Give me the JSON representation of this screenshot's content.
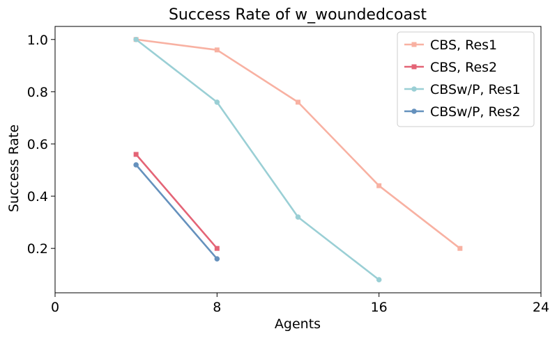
{
  "chart_data": {
    "type": "line",
    "title": "Success Rate of w_woundedcoast",
    "xlabel": "Agents",
    "ylabel": "Success Rate",
    "xlim": [
      0,
      24
    ],
    "ylim": [
      0.03,
      1.05
    ],
    "xticks": [
      0,
      8,
      16,
      24
    ],
    "xtick_labels": [
      "0",
      "8",
      "16",
      "24"
    ],
    "yticks": [
      0.2,
      0.4,
      0.6,
      0.8,
      1.0
    ],
    "ytick_labels": [
      "0.2",
      "0.4",
      "0.6",
      "0.8",
      "1.0"
    ],
    "grid": false,
    "legend_position": "top-right",
    "series": [
      {
        "name": "CBS, Res1",
        "color": "#f8b1a2",
        "marker": "square",
        "x": [
          4,
          8,
          12,
          16,
          20
        ],
        "y": [
          1.0,
          0.96,
          0.76,
          0.44,
          0.2
        ]
      },
      {
        "name": "CBS, Res2",
        "color": "#e46476",
        "marker": "square",
        "x": [
          4,
          8
        ],
        "y": [
          0.56,
          0.2
        ]
      },
      {
        "name": "CBSw/P, Res1",
        "color": "#9acfd5",
        "marker": "circle",
        "x": [
          4,
          8,
          12,
          16
        ],
        "y": [
          1.0,
          0.76,
          0.32,
          0.08
        ]
      },
      {
        "name": "CBSw/P, Res2",
        "color": "#6591bd",
        "marker": "circle",
        "x": [
          4,
          8
        ],
        "y": [
          0.52,
          0.16
        ]
      }
    ]
  }
}
